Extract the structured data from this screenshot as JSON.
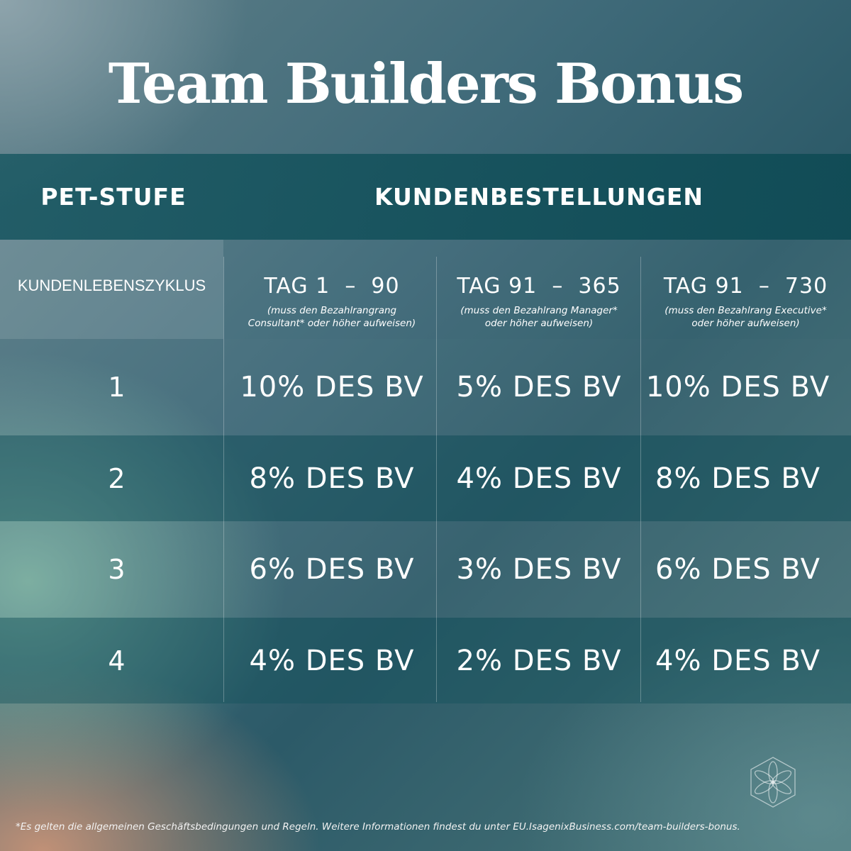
{
  "title": "Team Builders Bonus",
  "header": {
    "pet_stufe": "PET-STUFE",
    "kundenbestellungen": "KUNDENBESTELLUNGEN"
  },
  "subheader": {
    "lebenszyklus": "KUNDENLEBENSZYKLUS",
    "columns": [
      {
        "tag": "TAG 1  –  90",
        "note_line1": "(muss den Bezahlrangrang",
        "note_line2": "Consultant* oder höher aufweisen)"
      },
      {
        "tag": "TAG 91  –  365",
        "note_line1": "(muss den Bezahlrang Manager*",
        "note_line2": "oder höher aufweisen)"
      },
      {
        "tag": "TAG 91  –  730",
        "note_line1": "(muss den Bezahlrang Executive*",
        "note_line2": "oder höher aufweisen)"
      }
    ]
  },
  "rows": [
    {
      "level": "1",
      "values": [
        "10% DES BV",
        "5% DES BV",
        "10% DES BV"
      ]
    },
    {
      "level": "2",
      "values": [
        "8% DES BV",
        "4% DES BV",
        "8% DES BV"
      ]
    },
    {
      "level": "3",
      "values": [
        "6% DES BV",
        "3% DES BV",
        "6% DES BV"
      ]
    },
    {
      "level": "4",
      "values": [
        "4% DES BV",
        "2% DES BV",
        "4% DES BV"
      ]
    }
  ],
  "logo_icon": "flower-of-life-icon",
  "footnote": "*Es gelten die allgemeinen Geschäftsbedingungen und Regeln. Weitere Informationen findest du unter EU.IsagenixBusiness.com/team-builders-bonus."
}
